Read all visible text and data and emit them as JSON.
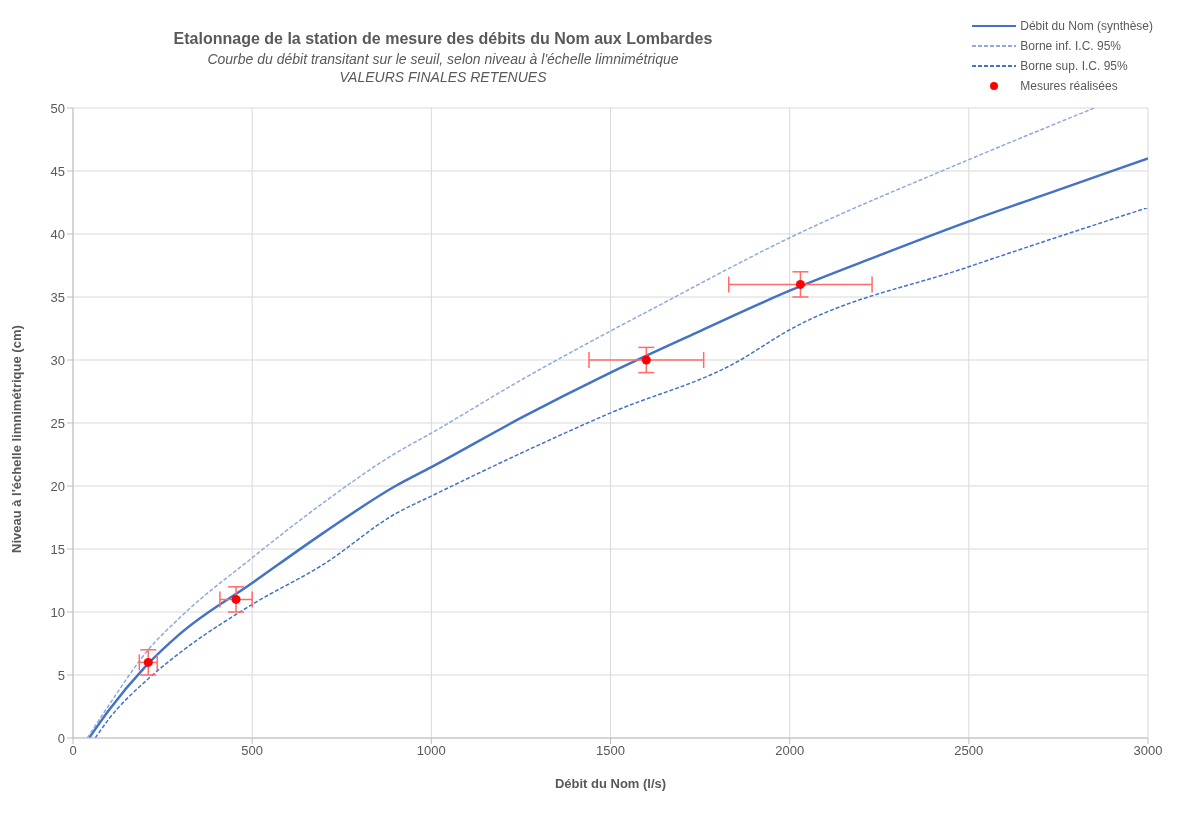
{
  "chart_data": {
    "type": "line",
    "title": "Etalonnage de la station de mesure des débits du Nom aux Lombardes",
    "subtitle": "Courbe du débit transitant sur le seuil, selon niveau à l'échelle limnimétrique",
    "annotations": [
      "VALEURS FINALES RETENUES"
    ],
    "xlabel": "Débit du Nom (l/s)",
    "ylabel": "Niveau à l'échelle limnimétrique (cm)",
    "xlim": [
      0,
      3000
    ],
    "xticks": [
      0,
      500,
      1000,
      1500,
      2000,
      2500,
      3000
    ],
    "ylim": [
      0,
      50
    ],
    "yticks": [
      0,
      5,
      10,
      15,
      20,
      25,
      30,
      35,
      40,
      45,
      50
    ],
    "grid": true,
    "legend": "top right",
    "series": [
      {
        "name": "Débit du Nom (synthèse)",
        "color": "#4472c4",
        "line_style": "solid",
        "x": [
          45,
          100,
          200,
          300,
          500,
          700,
          900,
          1000,
          1250,
          1500,
          1750,
          2000,
          2250,
          2500,
          2750,
          3000
        ],
        "values": [
          0,
          2.2,
          5.6,
          8.3,
          12.3,
          16.3,
          20,
          21.5,
          25.4,
          29,
          32.3,
          35.5,
          38.3,
          41,
          43.5,
          46
        ]
      },
      {
        "name": "Borne inf. I.C. 95%",
        "color": "#8faadc",
        "line_style": "dashed",
        "x": [
          40,
          100,
          210,
          300,
          500,
          700,
          900,
          1000,
          1250,
          1500,
          1600,
          2000,
          2500,
          2850
        ],
        "values": [
          0,
          2.6,
          7,
          9.6,
          14.3,
          18.7,
          22.6,
          24.2,
          28.4,
          32.3,
          33.8,
          39.7,
          45.9,
          50
        ]
      },
      {
        "name": "Borne sup. I.C. 95%",
        "color": "#4472c4",
        "line_style": "dashed",
        "x": [
          62,
          100,
          210,
          300,
          500,
          700,
          900,
          1000,
          1250,
          1500,
          1850,
          2000,
          2500,
          3000
        ],
        "values": [
          0,
          1.5,
          4.7,
          6.8,
          10.6,
          13.8,
          17.8,
          19.2,
          22.6,
          25.8,
          29.8,
          32.4,
          37.4,
          42.1
        ]
      },
      {
        "name": "Mesures réalisées",
        "type": "scatter",
        "color": "#ff0000",
        "marker": "circle",
        "x": [
          210,
          455,
          1600,
          2030
        ],
        "values": [
          6,
          11,
          30,
          36
        ],
        "xerrors": [
          25,
          45,
          160,
          200
        ],
        "errors": [
          1,
          1,
          1,
          1
        ]
      }
    ]
  }
}
